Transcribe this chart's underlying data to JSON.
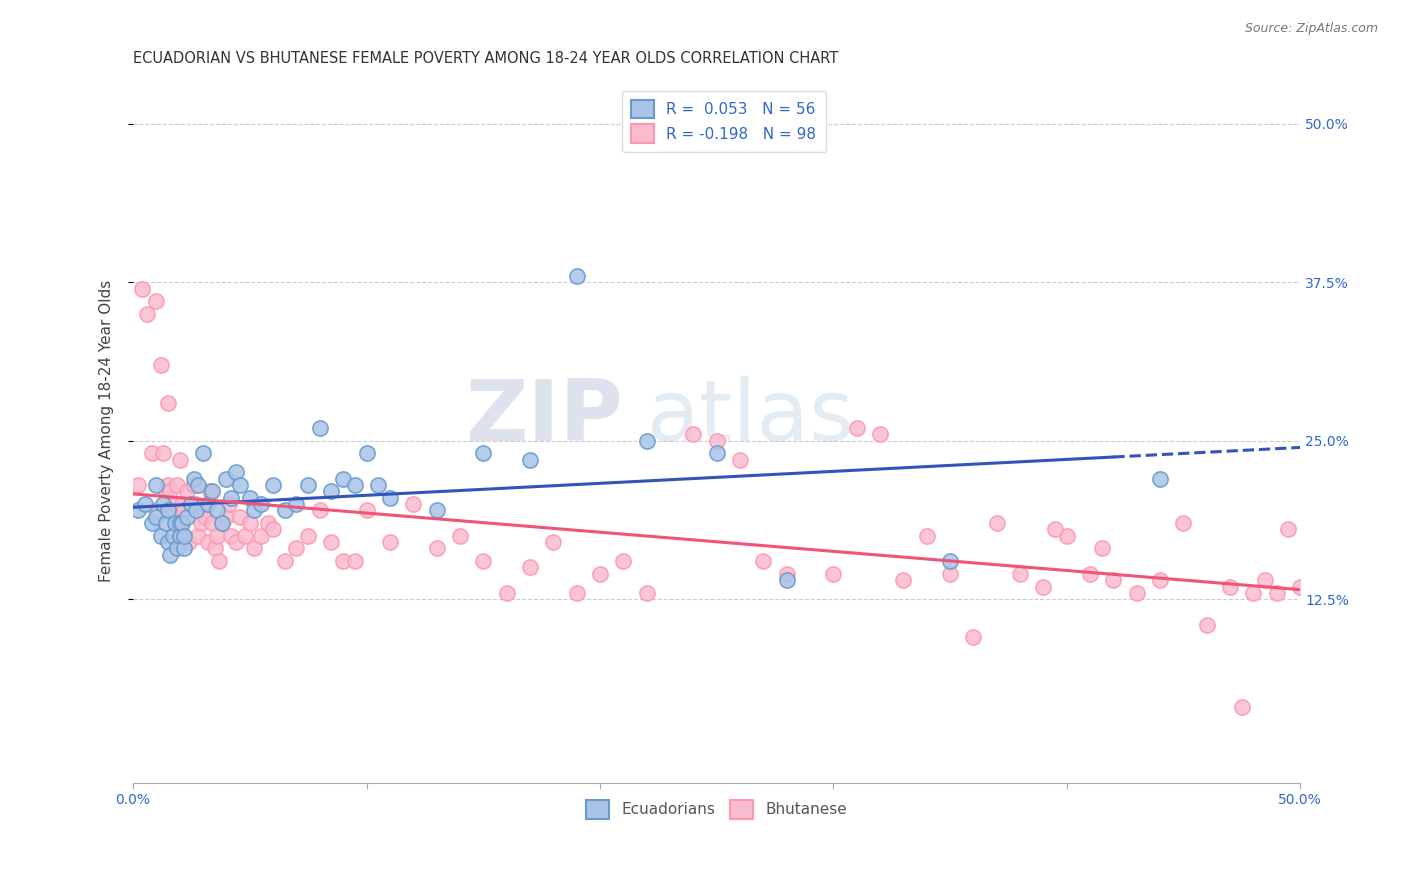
{
  "title": "ECUADORIAN VS BHUTANESE FEMALE POVERTY AMONG 18-24 YEAR OLDS CORRELATION CHART",
  "source": "Source: ZipAtlas.com",
  "ylabel": "Female Poverty Among 18-24 Year Olds",
  "xlim": [
    0.0,
    0.5
  ],
  "ylim": [
    -0.02,
    0.535
  ],
  "grid_color": "#cccccc",
  "background_color": "#ffffff",
  "watermark_zip": "ZIP",
  "watermark_atlas": "atlas",
  "legend_line1": "R =  0.053   N = 56",
  "legend_line2": "R = -0.198   N = 98",
  "blue_color": "#6699cc",
  "pink_color": "#ff99aa",
  "blue_line_color": "#3355bb",
  "pink_line_color": "#ee5577",
  "blue_marker_fill": "#aac4e8",
  "pink_marker_fill": "#f8bbd0",
  "ecu_x": [
    0.002,
    0.005,
    0.008,
    0.01,
    0.01,
    0.012,
    0.013,
    0.014,
    0.015,
    0.015,
    0.016,
    0.017,
    0.018,
    0.019,
    0.02,
    0.02,
    0.021,
    0.022,
    0.022,
    0.023,
    0.025,
    0.026,
    0.027,
    0.028,
    0.03,
    0.032,
    0.034,
    0.036,
    0.038,
    0.04,
    0.042,
    0.044,
    0.046,
    0.05,
    0.052,
    0.055,
    0.06,
    0.065,
    0.07,
    0.075,
    0.08,
    0.085,
    0.09,
    0.095,
    0.1,
    0.105,
    0.11,
    0.13,
    0.15,
    0.17,
    0.19,
    0.22,
    0.25,
    0.28,
    0.35,
    0.44
  ],
  "ecu_y": [
    0.195,
    0.2,
    0.185,
    0.215,
    0.19,
    0.175,
    0.2,
    0.185,
    0.17,
    0.195,
    0.16,
    0.175,
    0.185,
    0.165,
    0.175,
    0.185,
    0.185,
    0.165,
    0.175,
    0.19,
    0.2,
    0.22,
    0.195,
    0.215,
    0.24,
    0.2,
    0.21,
    0.195,
    0.185,
    0.22,
    0.205,
    0.225,
    0.215,
    0.205,
    0.195,
    0.2,
    0.215,
    0.195,
    0.2,
    0.215,
    0.26,
    0.21,
    0.22,
    0.215,
    0.24,
    0.215,
    0.205,
    0.195,
    0.24,
    0.235,
    0.38,
    0.25,
    0.24,
    0.14,
    0.155,
    0.22
  ],
  "bhu_x": [
    0.002,
    0.004,
    0.006,
    0.008,
    0.01,
    0.01,
    0.012,
    0.013,
    0.014,
    0.015,
    0.015,
    0.016,
    0.017,
    0.018,
    0.019,
    0.02,
    0.02,
    0.021,
    0.022,
    0.022,
    0.023,
    0.024,
    0.025,
    0.026,
    0.027,
    0.028,
    0.029,
    0.03,
    0.031,
    0.032,
    0.033,
    0.034,
    0.035,
    0.036,
    0.037,
    0.038,
    0.04,
    0.041,
    0.042,
    0.044,
    0.046,
    0.048,
    0.05,
    0.052,
    0.055,
    0.058,
    0.06,
    0.065,
    0.07,
    0.075,
    0.08,
    0.085,
    0.09,
    0.095,
    0.1,
    0.11,
    0.12,
    0.13,
    0.14,
    0.15,
    0.16,
    0.17,
    0.18,
    0.19,
    0.2,
    0.21,
    0.22,
    0.24,
    0.25,
    0.26,
    0.27,
    0.28,
    0.3,
    0.31,
    0.32,
    0.33,
    0.34,
    0.35,
    0.36,
    0.37,
    0.38,
    0.39,
    0.4,
    0.41,
    0.42,
    0.43,
    0.44,
    0.45,
    0.46,
    0.47,
    0.475,
    0.48,
    0.485,
    0.49,
    0.495,
    0.5,
    0.395,
    0.415
  ],
  "bhu_y": [
    0.215,
    0.37,
    0.35,
    0.24,
    0.36,
    0.195,
    0.31,
    0.24,
    0.21,
    0.28,
    0.215,
    0.21,
    0.195,
    0.2,
    0.215,
    0.235,
    0.185,
    0.2,
    0.175,
    0.195,
    0.21,
    0.17,
    0.2,
    0.215,
    0.2,
    0.175,
    0.185,
    0.195,
    0.19,
    0.17,
    0.21,
    0.185,
    0.165,
    0.175,
    0.155,
    0.185,
    0.19,
    0.2,
    0.175,
    0.17,
    0.19,
    0.175,
    0.185,
    0.165,
    0.175,
    0.185,
    0.18,
    0.155,
    0.165,
    0.175,
    0.195,
    0.17,
    0.155,
    0.155,
    0.195,
    0.17,
    0.2,
    0.165,
    0.175,
    0.155,
    0.13,
    0.15,
    0.17,
    0.13,
    0.145,
    0.155,
    0.13,
    0.255,
    0.25,
    0.235,
    0.155,
    0.145,
    0.145,
    0.26,
    0.255,
    0.14,
    0.175,
    0.145,
    0.095,
    0.185,
    0.145,
    0.135,
    0.175,
    0.145,
    0.14,
    0.13,
    0.14,
    0.185,
    0.105,
    0.135,
    0.04,
    0.13,
    0.14,
    0.13,
    0.18,
    0.135,
    0.18,
    0.165
  ]
}
